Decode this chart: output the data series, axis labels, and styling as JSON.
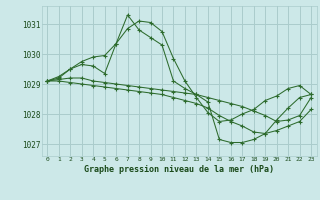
{
  "title": "Graphe pression niveau de la mer (hPa)",
  "bg_color": "#cce8e8",
  "grid_color": "#aacccc",
  "line_color": "#2d6b2d",
  "xlim": [
    -0.5,
    23.5
  ],
  "ylim": [
    1026.6,
    1031.6
  ],
  "yticks": [
    1027,
    1028,
    1029,
    1030,
    1031
  ],
  "xticks": [
    0,
    1,
    2,
    3,
    4,
    5,
    6,
    7,
    8,
    9,
    10,
    11,
    12,
    13,
    14,
    15,
    16,
    17,
    18,
    19,
    20,
    21,
    22,
    23
  ],
  "series": [
    [
      1029.1,
      1029.2,
      1029.5,
      1029.65,
      1029.6,
      1029.35,
      1030.35,
      1031.3,
      1030.8,
      1030.55,
      1030.3,
      1029.1,
      1028.85,
      1028.65,
      1028.4,
      1027.15,
      1027.05,
      1027.05,
      1027.15,
      1027.35,
      1027.8,
      1028.2,
      1028.55,
      1028.65
    ],
    [
      1029.1,
      1029.15,
      1029.2,
      1029.2,
      1029.1,
      1029.05,
      1029.0,
      1028.95,
      1028.9,
      1028.85,
      1028.8,
      1028.75,
      1028.7,
      1028.65,
      1028.55,
      1028.45,
      1028.35,
      1028.25,
      1028.1,
      1027.95,
      1027.75,
      1027.8,
      1027.95,
      1028.55
    ],
    [
      1029.1,
      1029.1,
      1029.05,
      1029.0,
      1028.95,
      1028.9,
      1028.85,
      1028.8,
      1028.75,
      1028.7,
      1028.65,
      1028.55,
      1028.45,
      1028.35,
      1028.2,
      1027.95,
      1027.75,
      1027.6,
      1027.4,
      1027.35,
      1027.45,
      1027.6,
      1027.75,
      1028.15
    ],
    [
      1029.1,
      1029.25,
      1029.5,
      1029.75,
      1029.9,
      1029.95,
      1030.35,
      1030.85,
      1031.1,
      1031.05,
      1030.75,
      1029.85,
      1029.1,
      1028.55,
      1028.05,
      1027.75,
      1027.8,
      1028.0,
      1028.15,
      1028.45,
      1028.6,
      1028.85,
      1028.95,
      1028.65
    ]
  ]
}
